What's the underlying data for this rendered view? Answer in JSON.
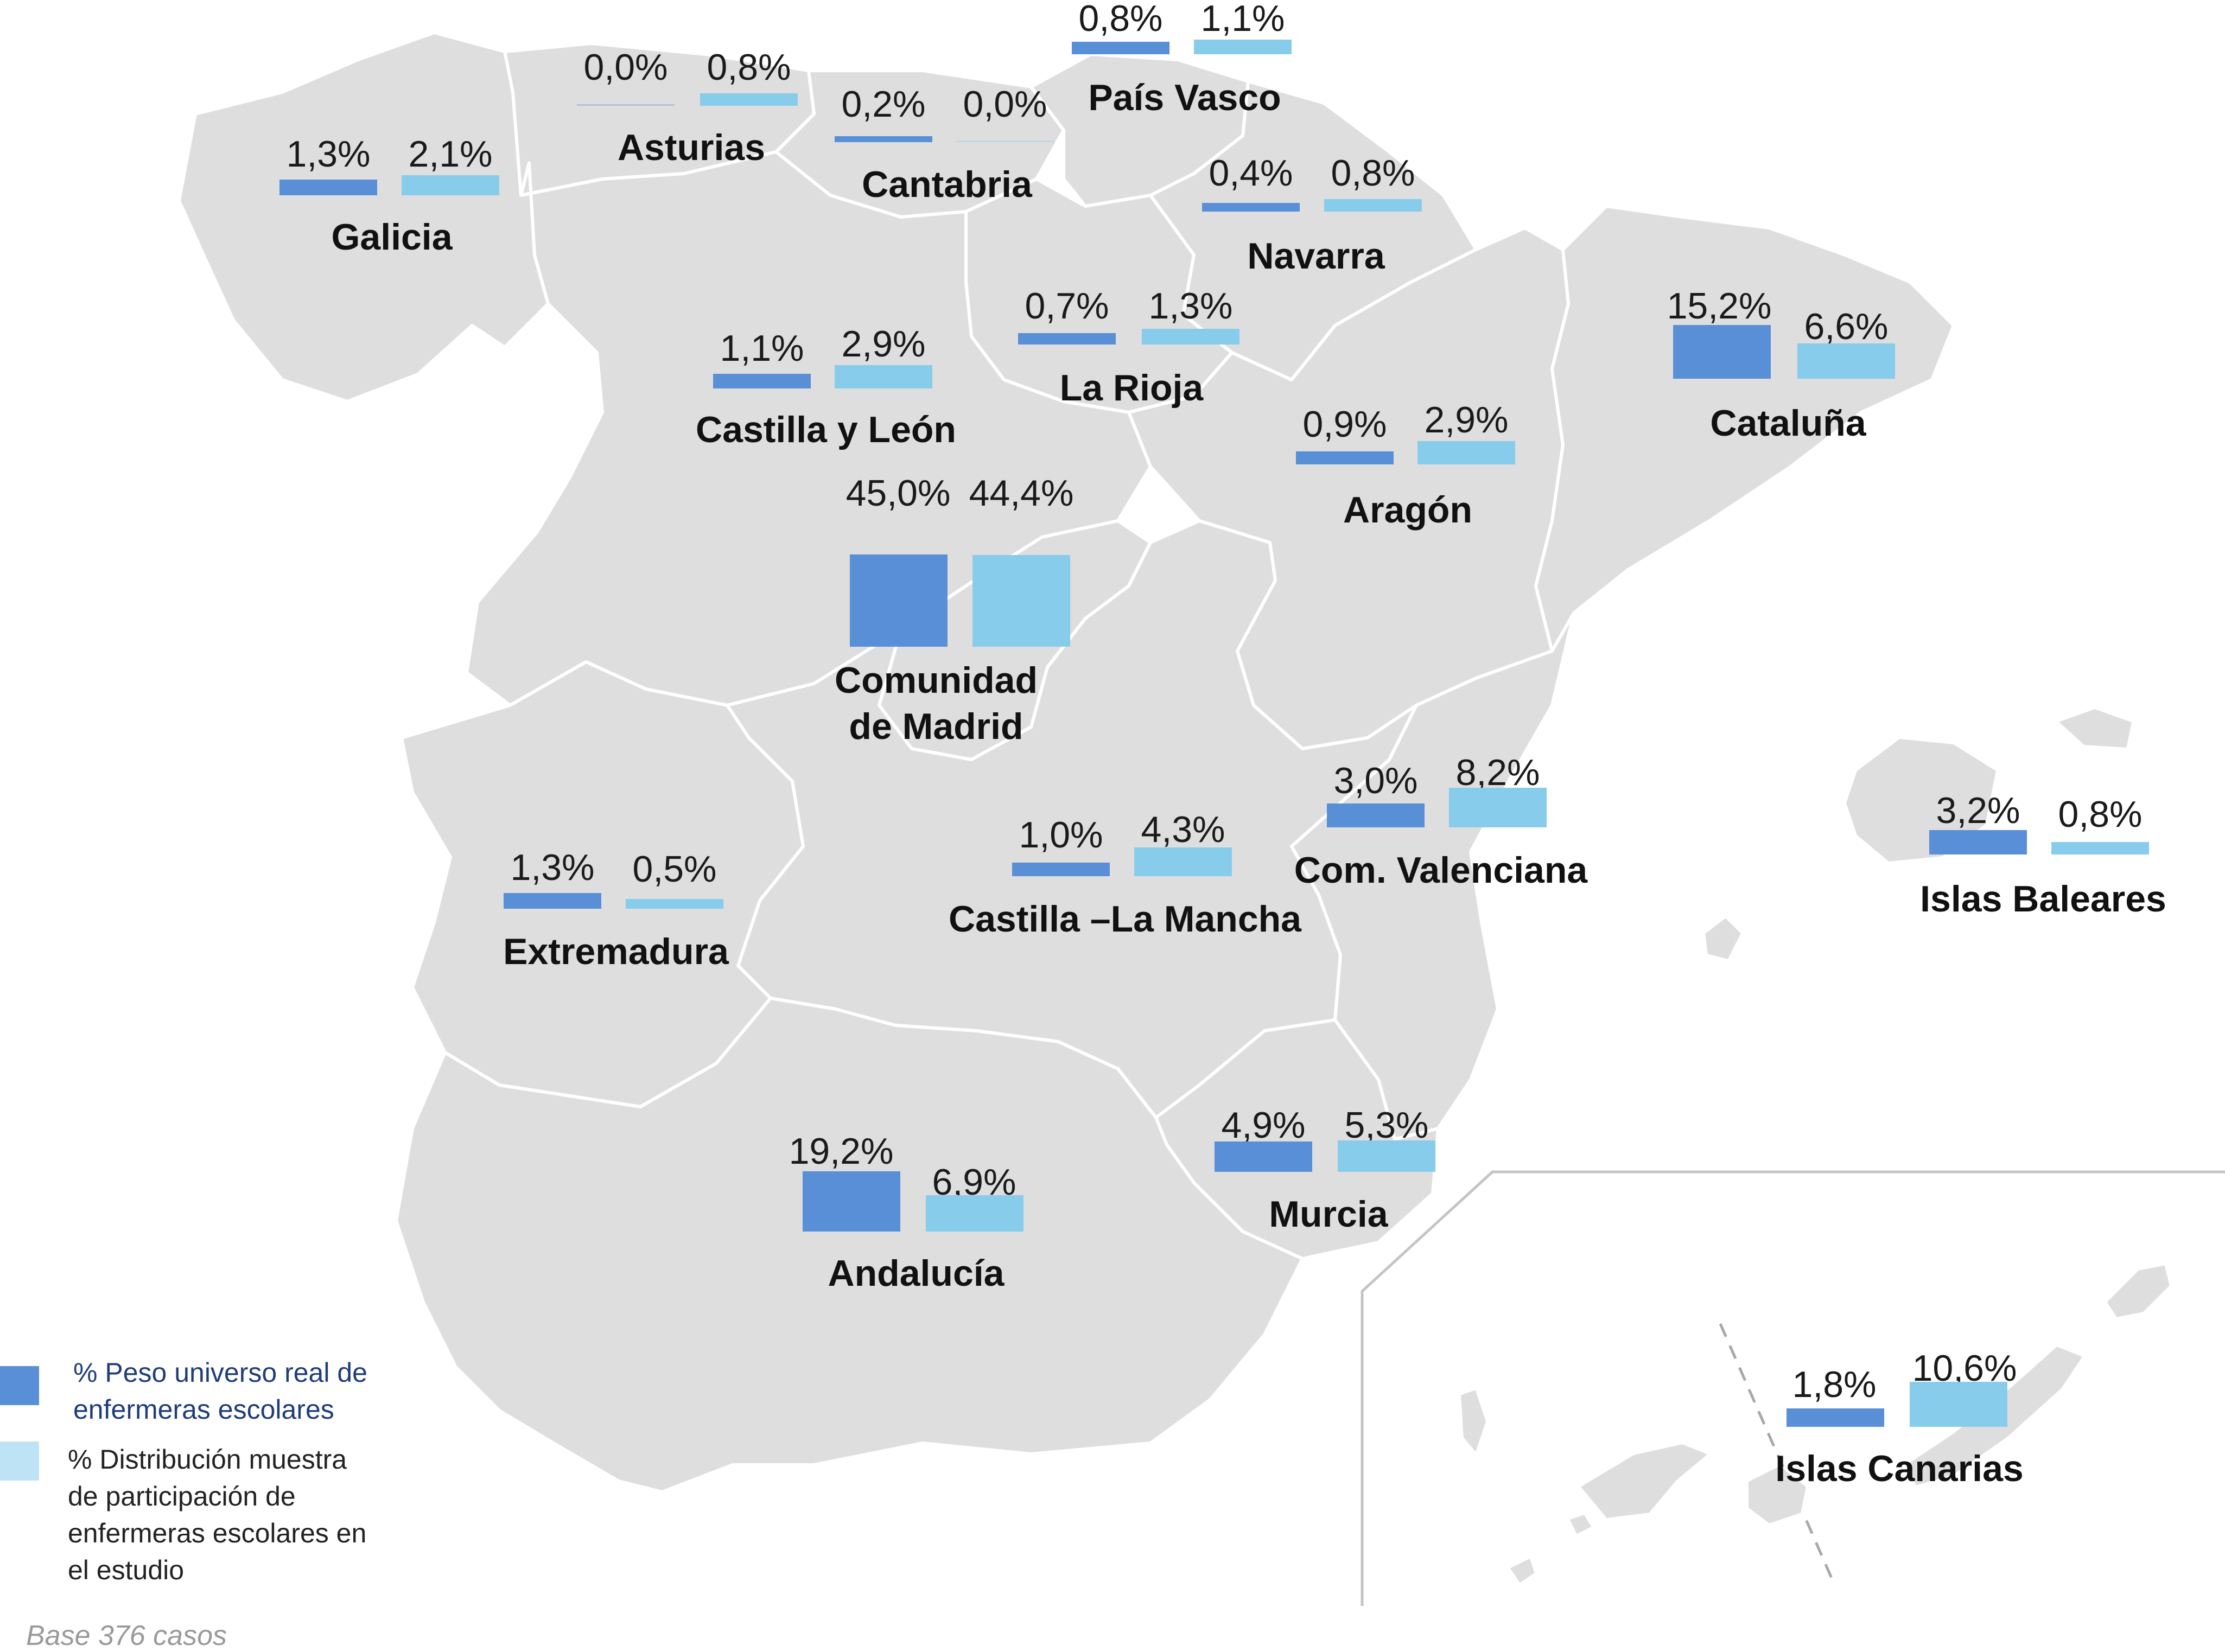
{
  "colors": {
    "universe": "#598fd6",
    "sample": "#87cceb",
    "land": "#dedede",
    "legend_text_universe": "#1f3d7a",
    "legend_text_sample": "#222222"
  },
  "regions": {
    "galicia": {
      "name": "Galicia",
      "universe_label": "1,3%",
      "sample_label": "2,1%",
      "universe": 1.3,
      "sample": 2.1
    },
    "asturias": {
      "name": "Asturias",
      "universe_label": "0,0%",
      "sample_label": "0,8%",
      "universe": 0.0,
      "sample": 0.8
    },
    "cantabria": {
      "name": "Cantabria",
      "universe_label": "0,2%",
      "sample_label": "0,0%",
      "universe": 0.2,
      "sample": 0.0
    },
    "pais_vasco": {
      "name": "País Vasco",
      "universe_label": "0,8%",
      "sample_label": "1,1%",
      "universe": 0.8,
      "sample": 1.1
    },
    "navarra": {
      "name": "Navarra",
      "universe_label": "0,4%",
      "sample_label": "0,8%",
      "universe": 0.4,
      "sample": 0.8
    },
    "la_rioja": {
      "name": "La Rioja",
      "universe_label": "0,7%",
      "sample_label": "1,3%",
      "universe": 0.7,
      "sample": 1.3
    },
    "castilla_leon": {
      "name": "Castilla y León",
      "universe_label": "1,1%",
      "sample_label": "2,9%",
      "universe": 1.1,
      "sample": 2.9
    },
    "aragon": {
      "name": "Aragón",
      "universe_label": "0,9%",
      "sample_label": "2,9%",
      "universe": 0.9,
      "sample": 2.9
    },
    "cataluna": {
      "name": "Cataluña",
      "universe_label": "15,2%",
      "sample_label": "6,6%",
      "universe": 15.2,
      "sample": 6.6
    },
    "madrid": {
      "name_line1": "Comunidad",
      "name_line2": "de Madrid",
      "universe_label": "45,0%",
      "sample_label": "44,4%",
      "universe": 45.0,
      "sample": 44.4
    },
    "com_valenciana": {
      "name": "Com. Valenciana",
      "universe_label": "3,0%",
      "sample_label": "8,2%",
      "universe": 3.0,
      "sample": 8.2
    },
    "baleares": {
      "name": "Islas Baleares",
      "universe_label": "3,2%",
      "sample_label": "0,8%",
      "universe": 3.2,
      "sample": 0.8
    },
    "castilla_la_mancha": {
      "name": "Castilla –La Mancha",
      "universe_label": "1,0%",
      "sample_label": "4,3%",
      "universe": 1.0,
      "sample": 4.3
    },
    "extremadura": {
      "name": "Extremadura",
      "universe_label": "1,3%",
      "sample_label": "0,5%",
      "universe": 1.3,
      "sample": 0.5
    },
    "murcia": {
      "name": "Murcia",
      "universe_label": "4,9%",
      "sample_label": "5,3%",
      "universe": 4.9,
      "sample": 5.3
    },
    "andalucia": {
      "name": "Andalucía",
      "universe_label": "19,2%",
      "sample_label": "6,9%",
      "universe": 19.2,
      "sample": 6.9
    },
    "canarias": {
      "name": "Islas Canarias",
      "universe_label": "1,8%",
      "sample_label": "10,6%",
      "universe": 1.8,
      "sample": 10.6
    }
  },
  "legend": {
    "universe_line1": "% Peso universo real de",
    "universe_line2": "enfermeras escolares",
    "sample_line1": "% Distribución muestra",
    "sample_line2": "de participación de",
    "sample_line3": "enfermeras escolares en",
    "sample_line4": "el estudio"
  },
  "footnote": "Base 376 casos"
}
